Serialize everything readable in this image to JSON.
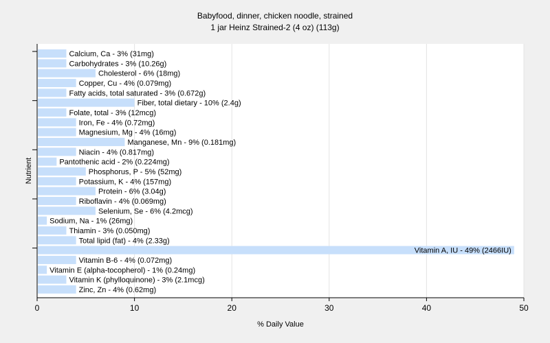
{
  "chart_data": {
    "type": "bar",
    "orientation": "horizontal",
    "title": "Babyfood, dinner, chicken noodle, strained",
    "subtitle": "1 jar Heinz Strained-2 (4 oz) (113g)",
    "xlabel": "% Daily Value",
    "ylabel": "Nutrient",
    "xlim": [
      0,
      50
    ],
    "xticks": [
      0,
      10,
      20,
      30,
      40,
      50
    ],
    "grid": true,
    "bar_color": "#c7dffb",
    "categories": [
      "Calcium, Ca",
      "Carbohydrates",
      "Cholesterol",
      "Copper, Cu",
      "Fatty acids, total saturated",
      "Fiber, total dietary",
      "Folate, total",
      "Iron, Fe",
      "Magnesium, Mg",
      "Manganese, Mn",
      "Niacin",
      "Pantothenic acid",
      "Phosphorus, P",
      "Potassium, K",
      "Protein",
      "Riboflavin",
      "Selenium, Se",
      "Sodium, Na",
      "Thiamin",
      "Total lipid (fat)",
      "Vitamin A, IU",
      "Vitamin B-6",
      "Vitamin E (alpha-tocopherol)",
      "Vitamin K (phylloquinone)",
      "Zinc, Zn"
    ],
    "values": [
      3,
      3,
      6,
      4,
      3,
      10,
      3,
      4,
      4,
      9,
      4,
      2,
      5,
      4,
      6,
      4,
      6,
      1,
      3,
      4,
      49,
      4,
      1,
      3,
      4
    ],
    "data_labels": [
      "Calcium, Ca - 3% (31mg)",
      "Carbohydrates - 3% (10.26g)",
      "Cholesterol - 6% (18mg)",
      "Copper, Cu - 4% (0.079mg)",
      "Fatty acids, total saturated - 3% (0.672g)",
      "Fiber, total dietary - 10% (2.4g)",
      "Folate, total - 3% (12mcg)",
      "Iron, Fe - 4% (0.72mg)",
      "Magnesium, Mg - 4% (16mg)",
      "Manganese, Mn - 9% (0.181mg)",
      "Niacin - 4% (0.817mg)",
      "Pantothenic acid - 2% (0.224mg)",
      "Phosphorus, P - 5% (52mg)",
      "Potassium, K - 4% (157mg)",
      "Protein - 6% (3.04g)",
      "Riboflavin - 4% (0.069mg)",
      "Selenium, Se - 6% (4.2mcg)",
      "Sodium, Na - 1% (26mg)",
      "Thiamin - 3% (0.050mg)",
      "Total lipid (fat) - 4% (2.33g)",
      "Vitamin A, IU - 49% (2466IU)",
      "Vitamin B-6 - 4% (0.072mg)",
      "Vitamin E (alpha-tocopherol) - 1% (0.24mg)",
      "Vitamin K (phylloquinone) - 3% (2.1mcg)",
      "Zinc, Zn - 4% (0.62mg)"
    ]
  }
}
